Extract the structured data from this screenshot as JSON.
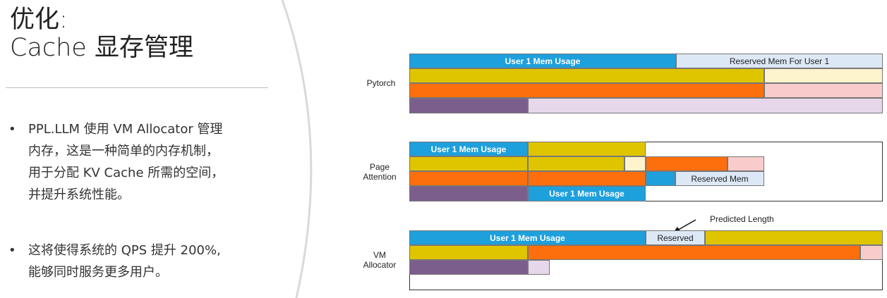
{
  "slide": {
    "title_line1": "优化:",
    "title_line2": "Cache 显存管理",
    "bullets": [
      {
        "line1": "PPL.LLM 使用 VM Allocator 管理",
        "line2": "内存，这是一种简单的内存机制，",
        "line3": "用于分配 KV Cache 所需的空间，",
        "line4": "并提升系统性能。"
      },
      {
        "line1": "这将使得系统的 QPS 提升 200%,",
        "line2": "能够同时服务更多用户。"
      }
    ]
  },
  "colors": {
    "blue": "#1ea0dc",
    "light_blue": "#dde8f7",
    "yellow": "#dfc400",
    "light_yellow": "#fdf3cc",
    "orange": "#fd6f0c",
    "light_orange": "#f9cccc",
    "purple": "#7c5e8c",
    "light_purple": "#e6d7ea"
  },
  "diagram": {
    "pytorch": {
      "label": "Pytorch",
      "user_mem": "User 1 Mem Usage",
      "reserved": "Reserved Mem For User 1"
    },
    "page_attention": {
      "label_line1": "Page",
      "label_line2": "Attention",
      "user_mem_top": "User 1 Mem Usage",
      "reserved": "Reserved Mem",
      "user_mem_bottom": "User 1 Mem Usage"
    },
    "vm_allocator": {
      "label_line1": "VM",
      "label_line2": "Allocator",
      "user_mem": "User 1 Mem Usage",
      "reserved": "Reserved",
      "annotation": "Predicted Length"
    }
  }
}
